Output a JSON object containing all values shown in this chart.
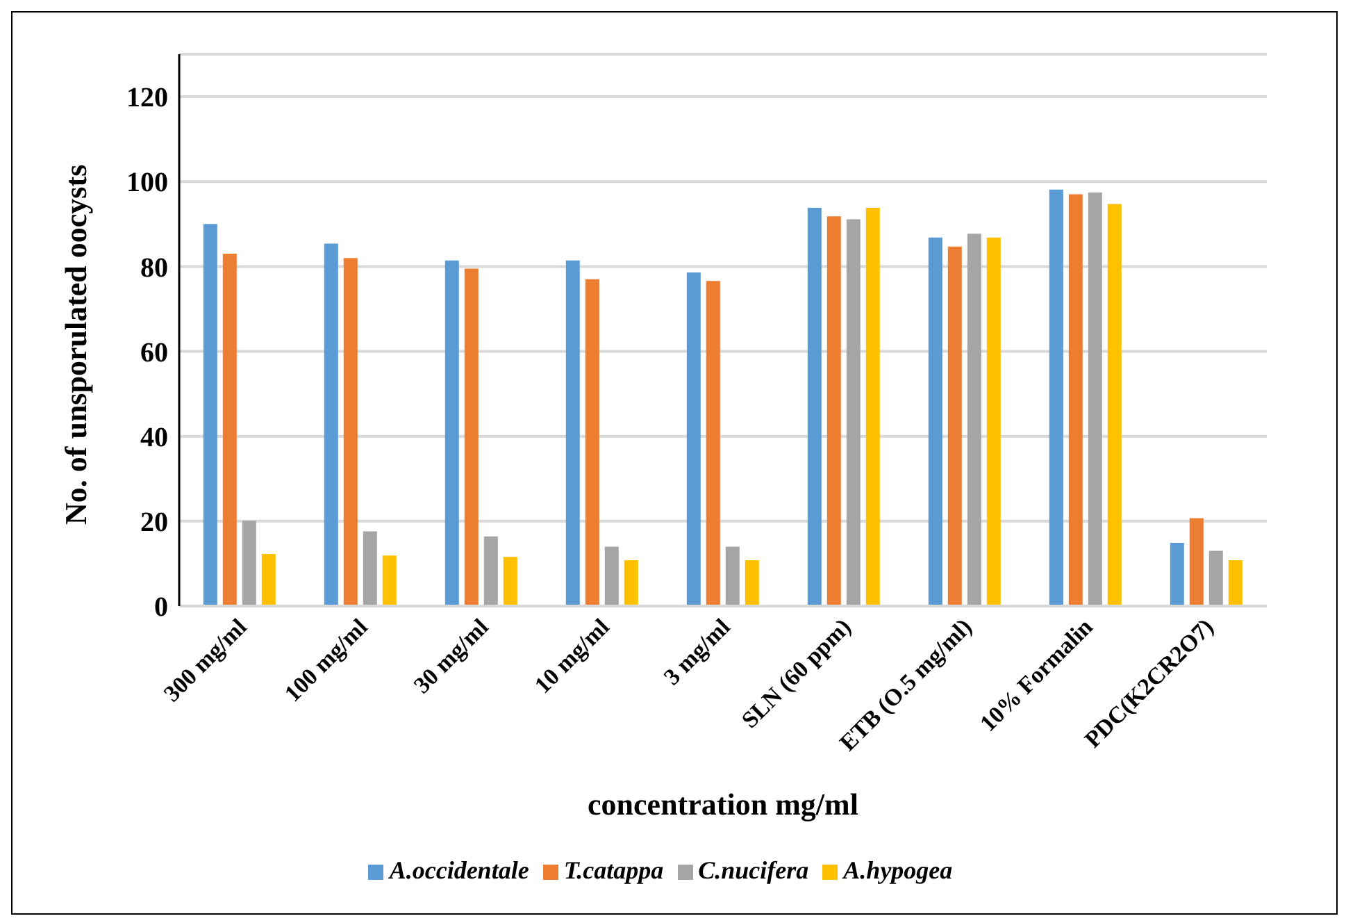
{
  "chart_data": {
    "type": "bar",
    "xlabel": "concentration mg/ml",
    "ylabel": "No. of unsporulated oocysts",
    "categories": [
      "300 mg/ml",
      "100 mg/ml",
      "30 mg/ml",
      "10 mg/ml",
      "3 mg/ml",
      "SLN (60 ppm)",
      "ETB (O.5 mg/ml)",
      "10% Formalin",
      "PDC(K2CR2O7)"
    ],
    "series": [
      {
        "name": "A.occidentale",
        "color": "#5b9bd5",
        "values": [
          90,
          85.4,
          81.4,
          81.4,
          78.6,
          93.8,
          86.8,
          98.1,
          14.9
        ]
      },
      {
        "name": "T.catappa",
        "color": "#ed7d31",
        "values": [
          83,
          82,
          79.5,
          77,
          76.6,
          91.8,
          84.7,
          97,
          20.7
        ]
      },
      {
        "name": "C.nucifera",
        "color": "#a5a5a5",
        "values": [
          20.1,
          17.6,
          16.4,
          14,
          14,
          91.1,
          87.7,
          97.4,
          13
        ]
      },
      {
        "name": "A.hypogea",
        "color": "#ffc000",
        "values": [
          12.3,
          11.9,
          11.6,
          10.8,
          10.8,
          93.8,
          86.8,
          94.7,
          10.8
        ]
      }
    ],
    "ylim": [
      0,
      130
    ],
    "yticks": [
      0,
      20,
      40,
      60,
      80,
      100,
      120
    ],
    "grid": "y",
    "legend": "bottom"
  }
}
